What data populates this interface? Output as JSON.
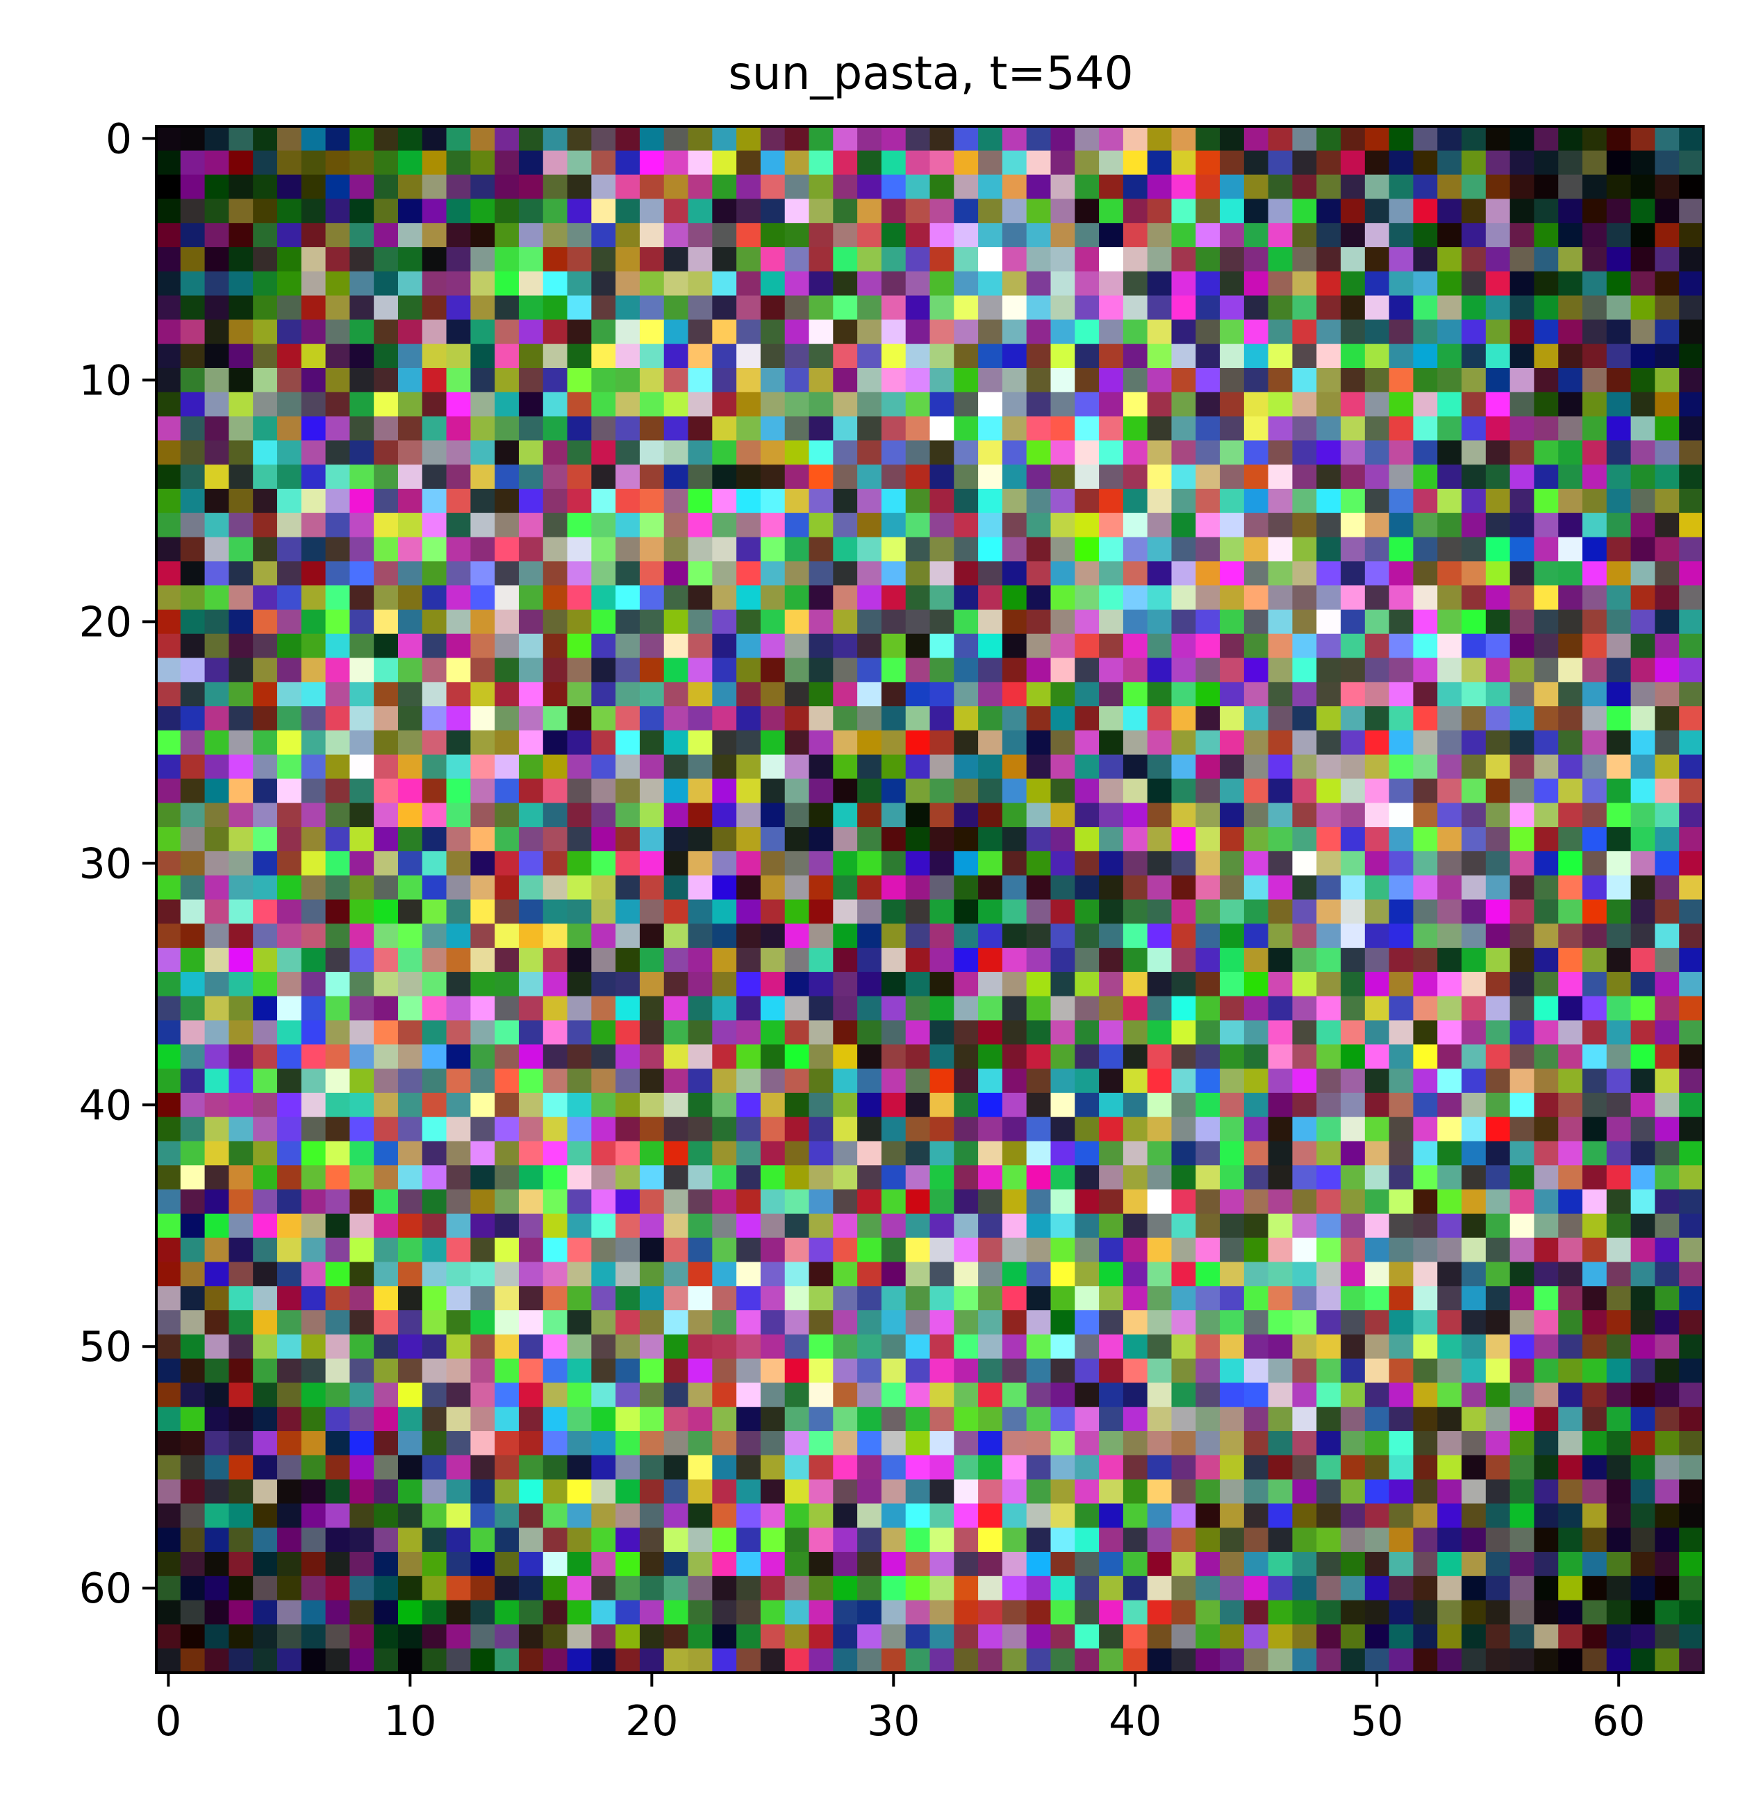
{
  "chart_data": {
    "type": "heatmap",
    "title": "sun_pasta, t=540",
    "xlabel": "",
    "ylabel": "",
    "grid": false,
    "grid_size": [
      64,
      64
    ],
    "xlim": [
      -0.5,
      63.5
    ],
    "ylim": [
      63.5,
      -0.5
    ],
    "x_ticks": [
      0,
      10,
      20,
      30,
      40,
      50,
      60
    ],
    "y_ticks": [
      0,
      10,
      20,
      30,
      40,
      50,
      60
    ],
    "x_tick_labels": [
      "0",
      "10",
      "20",
      "30",
      "40",
      "50",
      "60"
    ],
    "y_tick_labels": [
      "0",
      "10",
      "20",
      "30",
      "40",
      "50",
      "60"
    ],
    "description": "64x64 RGB image of per-pixel random saturated colors; brighter/pastel toward a central ring, darker near corners"
  }
}
